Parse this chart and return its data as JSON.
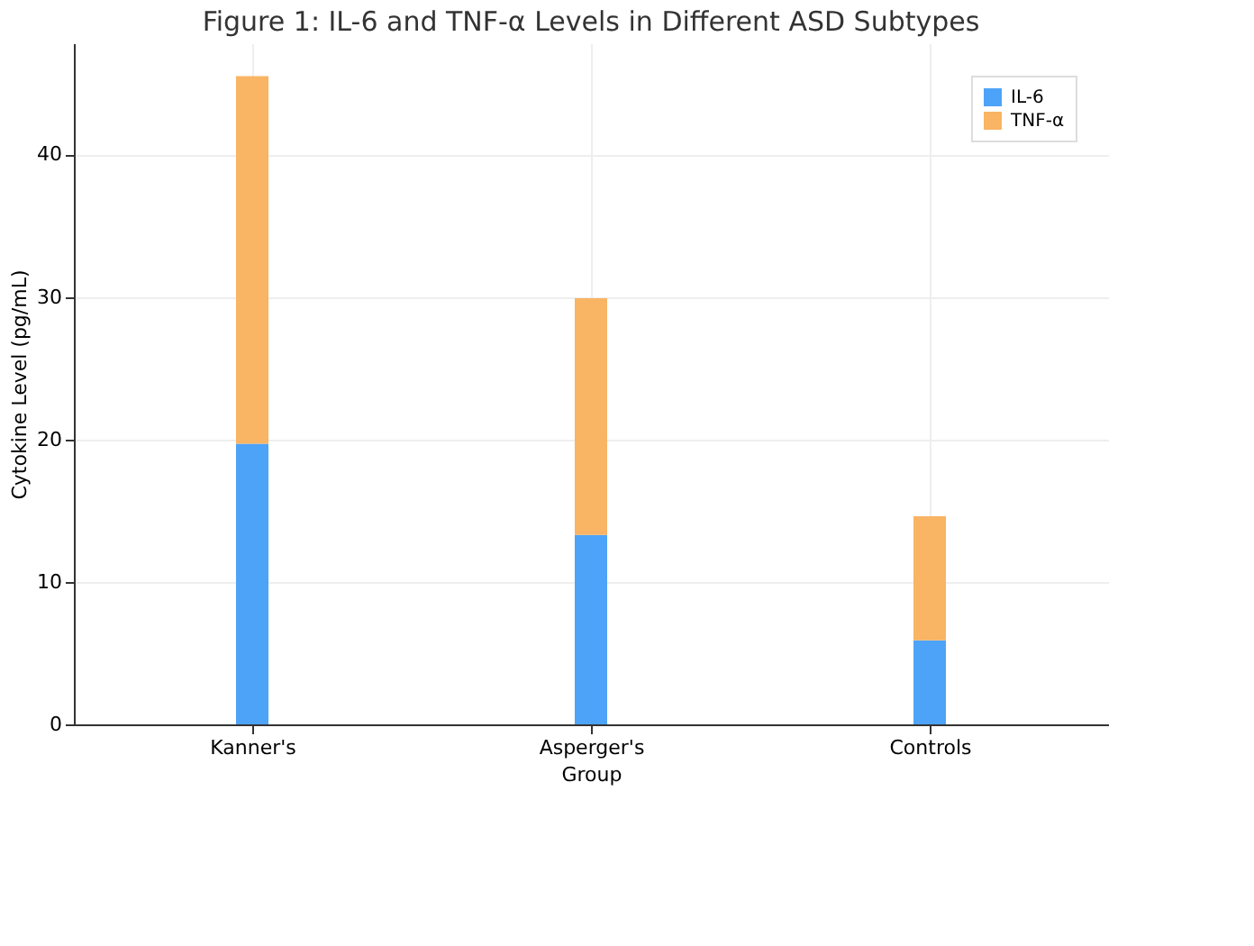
{
  "chart_data": {
    "type": "bar",
    "title": "Figure 1: IL-6 and TNF-α Levels in Different ASD Subtypes",
    "xlabel": "Group",
    "ylabel": "Cytokine Level (pg/mL)",
    "categories": [
      "Kanner's",
      "Asperger's",
      "Controls"
    ],
    "series": [
      {
        "name": "IL-6",
        "color": "#4da3f7",
        "values": [
          19.7,
          13.3,
          5.9
        ]
      },
      {
        "name": "TNF-α",
        "color": "#f9b464",
        "values": [
          25.8,
          16.6,
          8.7
        ]
      }
    ],
    "stacked": true,
    "ylim": [
      0,
      47.8
    ],
    "yticks": [
      0,
      10,
      20,
      30,
      40
    ],
    "grid": true,
    "legend": "top right"
  }
}
